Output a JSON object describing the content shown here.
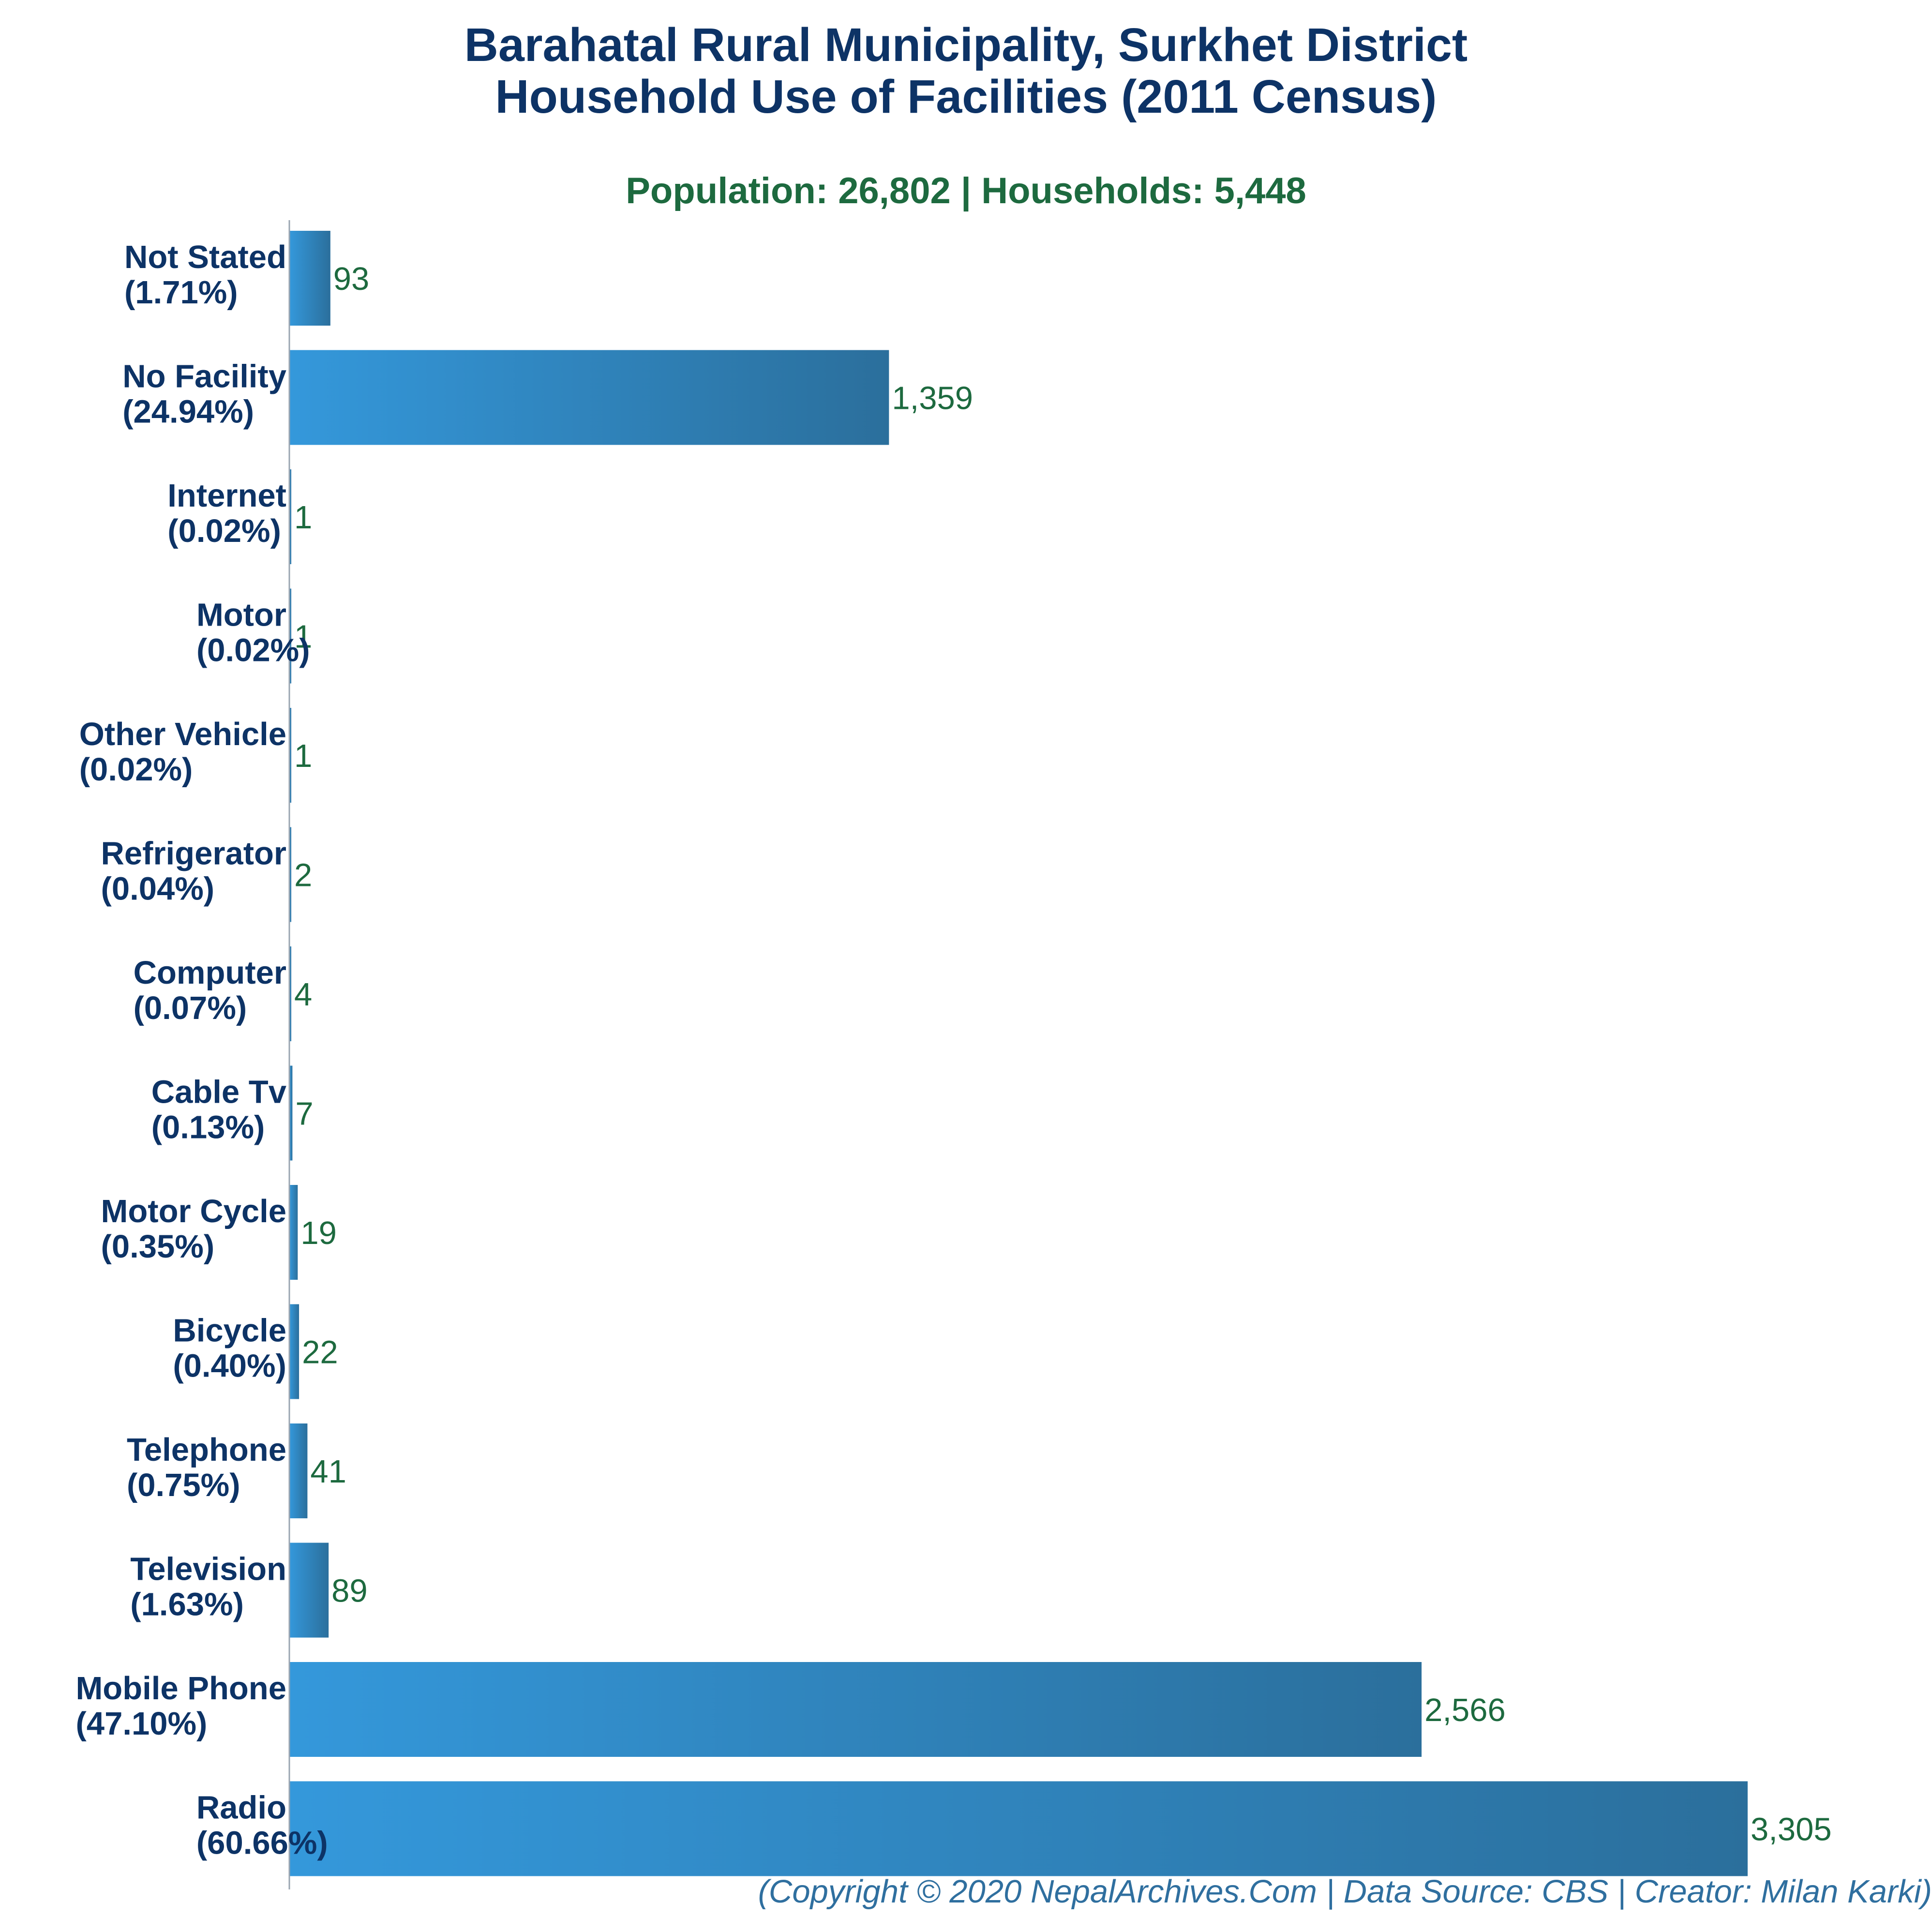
{
  "title_line1": "Barahatal Rural Municipality, Surkhet District",
  "title_line2": "Household Use of Facilities (2011 Census)",
  "subtitle": "Population: 26,802 | Households: 5,448",
  "footer": "(Copyright © 2020 NepalArchives.Com | Data Source: CBS | Creator: Milan Karki)",
  "colors": {
    "bar_light": "#3498db",
    "bar_dark": "#2b6f9c",
    "title": "#0d3366",
    "value_label": "#1d6a3f",
    "footer": "#2f6f9f",
    "axis": "#9aa5b1"
  },
  "chart_data": {
    "type": "bar",
    "orientation": "horizontal",
    "categories": [
      "Not Stated",
      "No Facility",
      "Internet",
      "Motor",
      "Other Vehicle",
      "Refrigerator",
      "Computer",
      "Cable Tv",
      "Motor Cycle",
      "Bicycle",
      "Telephone",
      "Television",
      "Mobile Phone",
      "Radio"
    ],
    "percent_labels": [
      "(1.71%)",
      "(24.94%)",
      "(0.02%)",
      "(0.02%)",
      "(0.02%)",
      "(0.04%)",
      "(0.07%)",
      "(0.13%)",
      "(0.35%)",
      "(0.40%)",
      "(0.75%)",
      "(1.63%)",
      "(47.10%)",
      "(60.66%)"
    ],
    "values": [
      93,
      1359,
      1,
      1,
      1,
      2,
      4,
      7,
      19,
      22,
      41,
      89,
      2566,
      3305
    ],
    "value_labels": [
      "93",
      "1,359",
      "1",
      "1",
      "1",
      "2",
      "4",
      "7",
      "19",
      "22",
      "41",
      "89",
      "2,566",
      "3,305"
    ],
    "xlim": [
      0,
      3305
    ],
    "grid": false,
    "legend": "none"
  }
}
